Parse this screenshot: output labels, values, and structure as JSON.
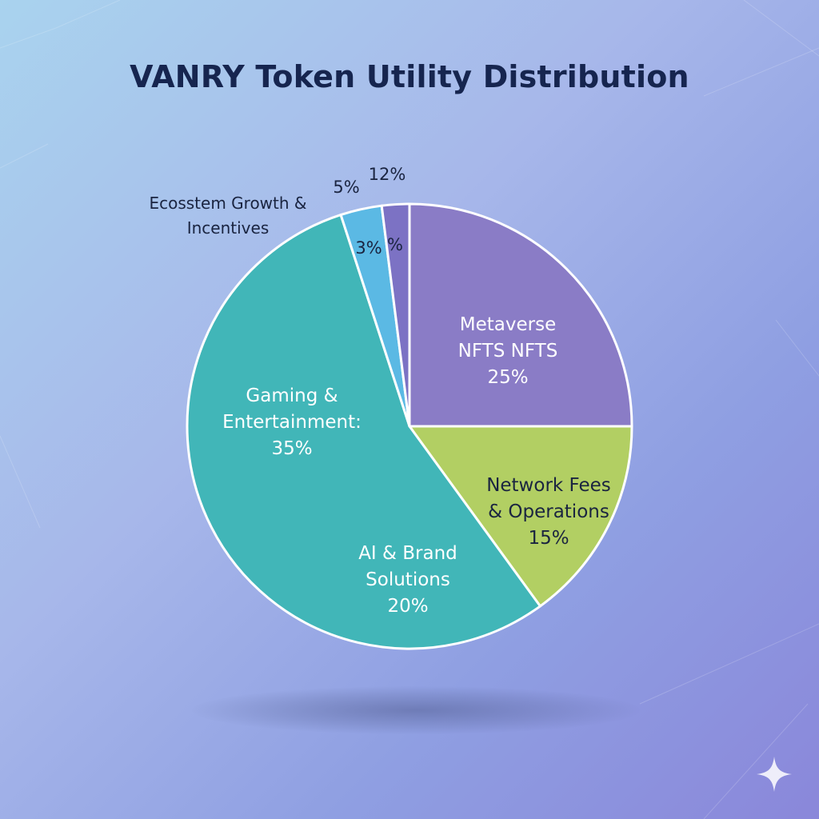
{
  "chart_data": {
    "type": "pie",
    "title": "VANRY Token Utility Distribution",
    "slices": [
      {
        "label": "Metaverse NFTS NFTS",
        "value_label": "25%",
        "value": 25,
        "color": "#8a7cc6",
        "label_lines": [
          "Metaverse",
          "NFTS NFTS",
          "25%"
        ],
        "label_color": "#ffffff"
      },
      {
        "label": "Network Fees & Operations",
        "value_label": "15%",
        "value": 15,
        "color": "#b2cf63",
        "label_lines": [
          "Network Fees",
          "& Operations",
          "15%"
        ],
        "label_color": "#1a2440"
      },
      {
        "label": "AI & Brand Solutions / Gaming & Entertainment",
        "value_label": "20% / 35%",
        "value": 55,
        "color": "#41b6b8",
        "label_lines": [],
        "label_color": "#ffffff"
      },
      {
        "label": "3%",
        "value_label": "3%",
        "value": 3,
        "color": "#5bb9e4",
        "label_lines": [],
        "label_color": "#1a2440"
      },
      {
        "label": "%",
        "value_label": "%",
        "value": 2,
        "color": "#7c72c4",
        "label_lines": [],
        "label_color": "#1a2440"
      }
    ],
    "inner_labels": [
      {
        "lines": [
          "Gaming &",
          "Entertainment:",
          "35%"
        ],
        "color": "#ffffff"
      },
      {
        "lines": [
          "AI & Brand",
          "Solutions",
          "20%"
        ],
        "color": "#ffffff"
      },
      {
        "lines": [
          "3%"
        ],
        "color": "#1a2440"
      },
      {
        "lines": [
          "%"
        ],
        "color": "#1a2440"
      }
    ],
    "outer_labels": [
      {
        "lines": [
          "Ecosstem Growth &",
          "Incentives"
        ],
        "color": "#1a2440"
      },
      {
        "lines": [
          "5%"
        ],
        "color": "#1a2440"
      },
      {
        "lines": [
          "12%"
        ],
        "color": "#1a2440"
      }
    ]
  },
  "decor": {
    "sparkle_icon": "sparkle-icon"
  }
}
